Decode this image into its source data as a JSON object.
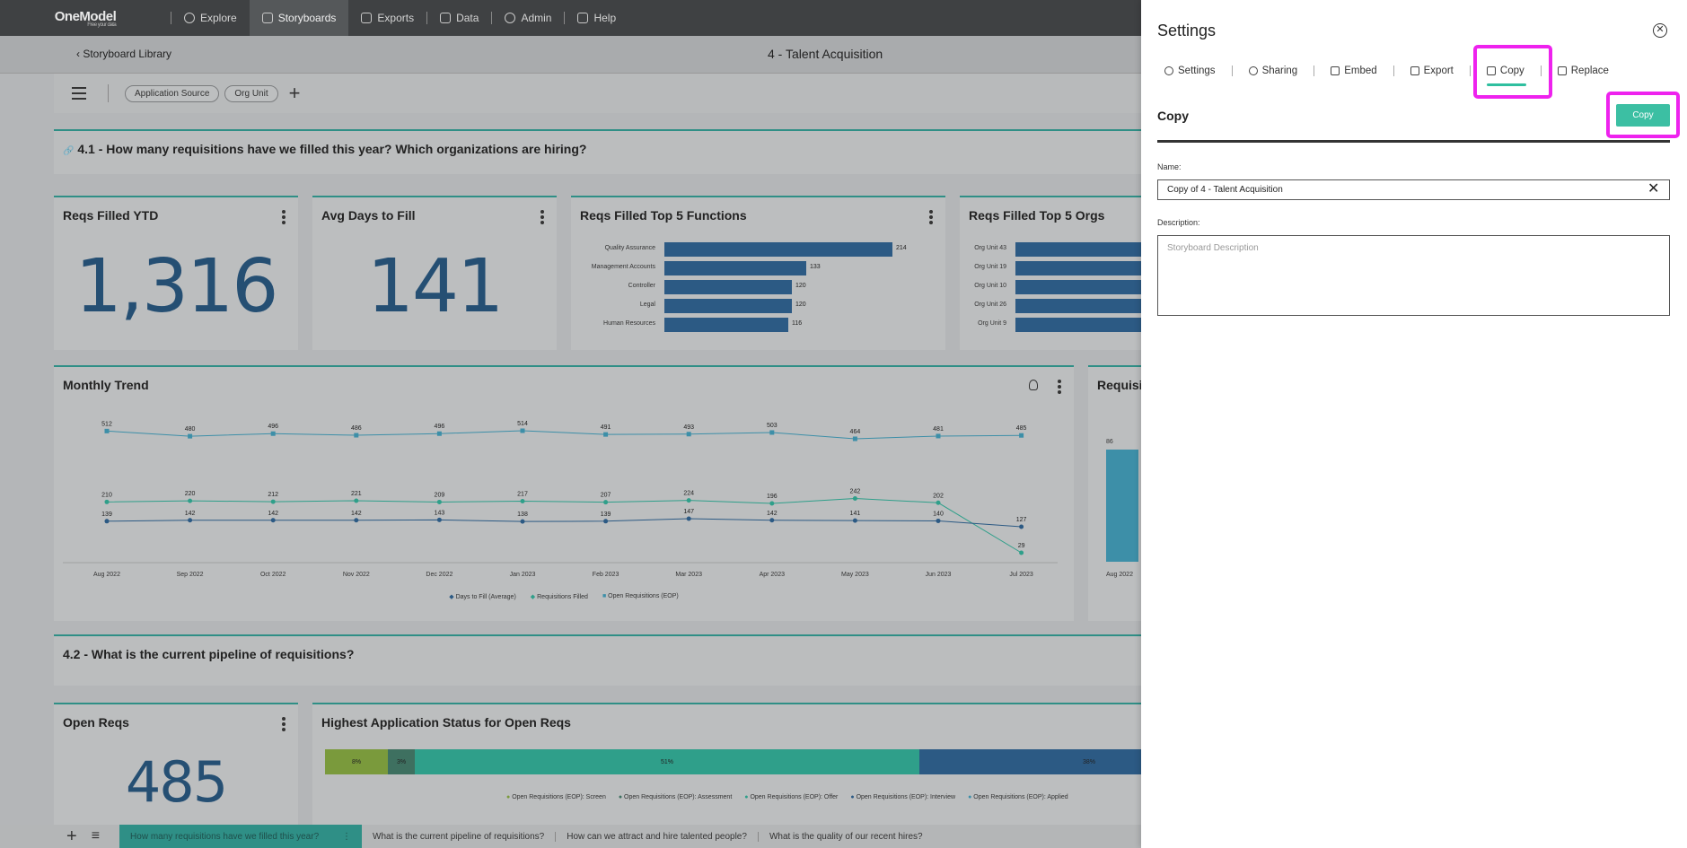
{
  "nav": {
    "logo": "OneModel",
    "logo_tag": "Free your data",
    "items": [
      {
        "label": "Explore",
        "icon": "compass-icon"
      },
      {
        "label": "Storyboards",
        "icon": "storyboard-icon"
      },
      {
        "label": "Exports",
        "icon": "export-icon"
      },
      {
        "label": "Data",
        "icon": "data-icon"
      },
      {
        "label": "Admin",
        "icon": "gear-icon"
      },
      {
        "label": "Help",
        "icon": "help-icon"
      }
    ]
  },
  "header": {
    "breadcrumb": "Storyboard Library",
    "title": "4 - Talent Acquisition"
  },
  "filters": [
    "Application Source",
    "Org Unit"
  ],
  "section1": {
    "title": "4.1 - How many requisitions have we filled this year? Which organizations are hiring?"
  },
  "kpis": {
    "reqs_filled": {
      "title": "Reqs Filled YTD",
      "value": "1,316"
    },
    "avg_days": {
      "title": "Avg Days to Fill",
      "value": "141"
    },
    "open_reqs": {
      "title": "Open Reqs",
      "value": "485"
    }
  },
  "top_functions": {
    "title": "Reqs Filled Top 5 Functions",
    "bars": [
      {
        "label": "Quality Assurance",
        "value": 214
      },
      {
        "label": "Management Accounts",
        "value": 133
      },
      {
        "label": "Controller",
        "value": 120
      },
      {
        "label": "Legal",
        "value": 120
      },
      {
        "label": "Human Resources",
        "value": 116
      }
    ]
  },
  "top_orgs": {
    "title": "Reqs Filled Top 5 Orgs",
    "labels": [
      "Org Unit 43",
      "Org Unit 19",
      "Org Unit 10",
      "Org Unit 26",
      "Org Unit 9"
    ]
  },
  "trend": {
    "title": "Monthly Trend",
    "legend": [
      "Days to Fill (Average)",
      "Requisitions Filled",
      "Open Requisitions (EOP)"
    ]
  },
  "chart_data": {
    "type": "line",
    "title": "Monthly Trend",
    "x": [
      "Aug 2022",
      "Sep 2022",
      "Oct 2022",
      "Nov 2022",
      "Dec 2022",
      "Jan 2023",
      "Feb 2023",
      "Mar 2023",
      "Apr 2023",
      "May 2023",
      "Jun 2023",
      "Jul 2023"
    ],
    "series": [
      {
        "name": "Open Requisitions (EOP)",
        "values": [
          512,
          480,
          496,
          486,
          496,
          514,
          491,
          493,
          503,
          464,
          481,
          485
        ],
        "color": "#3d8fa8"
      },
      {
        "name": "Requisitions Filled",
        "values": [
          210,
          220,
          212,
          221,
          209,
          217,
          207,
          224,
          196,
          242,
          202,
          29
        ],
        "color": "#2f9f8a"
      },
      {
        "name": "Days to Fill (Average)",
        "values": [
          139,
          142,
          142,
          142,
          143,
          138,
          139,
          147,
          142,
          141,
          140,
          127
        ],
        "color": "#2c5a84"
      }
    ]
  },
  "req_partial": {
    "title": "Requisit",
    "value": "86",
    "xtick": "Aug 2022"
  },
  "section2": {
    "title": "4.2 - What is the current pipeline of requisitions?"
  },
  "pipeline": {
    "title": "Highest Application Status for Open Reqs",
    "segments": [
      {
        "label": "8%",
        "color": "#7a9a3c"
      },
      {
        "label": "3%",
        "color": "#3e7060"
      },
      {
        "label": "51%",
        "color": "#2f9f8a"
      },
      {
        "label": "38%",
        "color": "#2c5a84"
      }
    ],
    "legend": [
      {
        "label": "Open Requisitions (EOP): Screen",
        "color": "#7a9a3c"
      },
      {
        "label": "Open Requisitions (EOP): Assessment",
        "color": "#3e7060"
      },
      {
        "label": "Open Requisitions (EOP): Offer",
        "color": "#2f9f8a"
      },
      {
        "label": "Open Requisitions (EOP): Interview",
        "color": "#2c5a84"
      },
      {
        "label": "Open Requisitions (EOP): Applied",
        "color": "#3d8fa8"
      }
    ]
  },
  "bottom": {
    "active": "How many requisitions have we filled this year?",
    "items": [
      "What is the current pipeline of requisitions?",
      "How can we attract and hire talented people?",
      "What is the quality of our recent hires?"
    ]
  },
  "panel": {
    "title": "Settings",
    "tabs": [
      "Settings",
      "Sharing",
      "Embed",
      "Export",
      "Copy",
      "Replace"
    ],
    "section": "Copy",
    "button": "Copy",
    "name_label": "Name:",
    "name_value": "Copy of 4 - Talent Acquisition",
    "desc_label": "Description:",
    "desc_placeholder": "Storyboard Description"
  }
}
